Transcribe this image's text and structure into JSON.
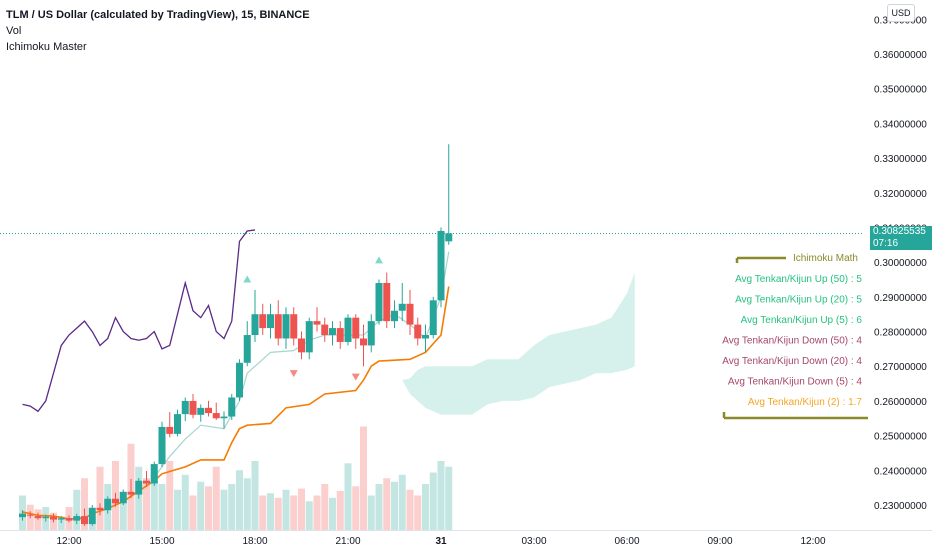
{
  "header": {
    "symbol_line": "TLM / US Dollar (calculated by TradingView), 15, BINANCE",
    "indicator_1": "Vol",
    "indicator_2": "Ichimoku Master"
  },
  "currency_button": "USD",
  "price_badge": {
    "price": "0.30825535",
    "countdown": "07:16"
  },
  "colors": {
    "up": "#26a69a",
    "down": "#ef5350",
    "kijun": "#f57c00",
    "tenkan": "#a5d6cc",
    "chikou": "#5b2a86",
    "cloud": "#c8ece4",
    "table_frame": "#8a8a2a",
    "up_text": "#26c281",
    "down_text": "#a5466c",
    "orange_text": "#f5a623"
  },
  "info_table": {
    "title": "Ichimoku Math",
    "rows": [
      {
        "label": "Avg Tenkan/Kijun Up (50) : 5",
        "tone": "up"
      },
      {
        "label": "Avg Tenkan/Kijun Up (20) : 5",
        "tone": "up"
      },
      {
        "label": "Avg Tenkan/Kijun Up (5) : 6",
        "tone": "up"
      },
      {
        "label": "Avg Tenkan/Kijun Down (50) : 4",
        "tone": "down"
      },
      {
        "label": "Avg Tenkan/Kijun Down (20) : 4",
        "tone": "down"
      },
      {
        "label": "Avg Tenkan/Kijun Down (5) : 4",
        "tone": "down"
      },
      {
        "label": "Avg Tenkan/Kijun (2) : 1.7",
        "tone": "orange"
      }
    ]
  },
  "chart_data": {
    "type": "candlestick",
    "title": "TLM / US Dollar (calculated by TradingView), 15, BINANCE",
    "xlabel": "",
    "ylabel": "",
    "y_axis": {
      "ticks": [
        0.23,
        0.24,
        0.25,
        0.26,
        0.27,
        0.28,
        0.29,
        0.3,
        0.31,
        0.32,
        0.33,
        0.34,
        0.35,
        0.36,
        0.37
      ],
      "tick_labels": [
        "0.23000000",
        "0.24000000",
        "0.25000000",
        "0.26000000",
        "0.27000000",
        "0.28000000",
        "0.29000000",
        "0.30000000",
        "0.31000000",
        "0.32000000",
        "0.33000000",
        "0.34000000",
        "0.35000000",
        "0.36000000",
        "0.37000000"
      ],
      "range": [
        0.2235,
        0.377
      ]
    },
    "x_axis": {
      "ticks": [
        {
          "label": "12:00",
          "hours": 12
        },
        {
          "label": "15:00",
          "hours": 15
        },
        {
          "label": "18:00",
          "hours": 18
        },
        {
          "label": "21:00",
          "hours": 21
        },
        {
          "label": "31",
          "hours": 24
        },
        {
          "label": "03:00",
          "hours": 27
        },
        {
          "label": "06:00",
          "hours": 30
        },
        {
          "label": "09:00",
          "hours": 33
        },
        {
          "label": "12:00",
          "hours": 36
        }
      ],
      "range_hours": [
        10.55,
        37.5
      ],
      "bar_minutes": 15
    },
    "candles": [
      {
        "t": 10.5,
        "o": 0.2265,
        "h": 0.2285,
        "l": 0.2255,
        "c": 0.2275
      },
      {
        "t": 10.75,
        "o": 0.2272,
        "h": 0.2282,
        "l": 0.2262,
        "c": 0.227
      },
      {
        "t": 11.0,
        "o": 0.2268,
        "h": 0.2278,
        "l": 0.2258,
        "c": 0.2262
      },
      {
        "t": 11.25,
        "o": 0.2262,
        "h": 0.2272,
        "l": 0.2252,
        "c": 0.2266
      },
      {
        "t": 11.5,
        "o": 0.2266,
        "h": 0.2276,
        "l": 0.225,
        "c": 0.2258
      },
      {
        "t": 11.75,
        "o": 0.2258,
        "h": 0.2268,
        "l": 0.2248,
        "c": 0.2262
      },
      {
        "t": 12.0,
        "o": 0.2262,
        "h": 0.227,
        "l": 0.225,
        "c": 0.2255
      },
      {
        "t": 12.25,
        "o": 0.2255,
        "h": 0.2275,
        "l": 0.2245,
        "c": 0.2268
      },
      {
        "t": 12.5,
        "o": 0.2268,
        "h": 0.229,
        "l": 0.224,
        "c": 0.2245
      },
      {
        "t": 12.75,
        "o": 0.2245,
        "h": 0.23,
        "l": 0.224,
        "c": 0.2292
      },
      {
        "t": 13.0,
        "o": 0.2292,
        "h": 0.2305,
        "l": 0.227,
        "c": 0.2285
      },
      {
        "t": 13.25,
        "o": 0.2285,
        "h": 0.2325,
        "l": 0.2275,
        "c": 0.2318
      },
      {
        "t": 13.5,
        "o": 0.2318,
        "h": 0.2335,
        "l": 0.2295,
        "c": 0.2305
      },
      {
        "t": 13.75,
        "o": 0.2305,
        "h": 0.2345,
        "l": 0.23,
        "c": 0.2338
      },
      {
        "t": 14.0,
        "o": 0.2338,
        "h": 0.2375,
        "l": 0.232,
        "c": 0.233
      },
      {
        "t": 14.25,
        "o": 0.233,
        "h": 0.2378,
        "l": 0.2318,
        "c": 0.237
      },
      {
        "t": 14.5,
        "o": 0.237,
        "h": 0.2398,
        "l": 0.2352,
        "c": 0.2362
      },
      {
        "t": 14.75,
        "o": 0.2362,
        "h": 0.2425,
        "l": 0.2355,
        "c": 0.2418
      },
      {
        "t": 15.0,
        "o": 0.2418,
        "h": 0.254,
        "l": 0.241,
        "c": 0.2525
      },
      {
        "t": 15.25,
        "o": 0.2525,
        "h": 0.2568,
        "l": 0.2495,
        "c": 0.2505
      },
      {
        "t": 15.5,
        "o": 0.2505,
        "h": 0.2575,
        "l": 0.2498,
        "c": 0.2562
      },
      {
        "t": 15.75,
        "o": 0.2562,
        "h": 0.261,
        "l": 0.2542,
        "c": 0.26
      },
      {
        "t": 16.0,
        "o": 0.26,
        "h": 0.262,
        "l": 0.255,
        "c": 0.256
      },
      {
        "t": 16.25,
        "o": 0.256,
        "h": 0.259,
        "l": 0.254,
        "c": 0.258
      },
      {
        "t": 16.5,
        "o": 0.258,
        "h": 0.26,
        "l": 0.2555,
        "c": 0.2565
      },
      {
        "t": 16.75,
        "o": 0.2565,
        "h": 0.2595,
        "l": 0.2545,
        "c": 0.255
      },
      {
        "t": 17.0,
        "o": 0.255,
        "h": 0.257,
        "l": 0.252,
        "c": 0.2555
      },
      {
        "t": 17.25,
        "o": 0.2555,
        "h": 0.262,
        "l": 0.2545,
        "c": 0.261
      },
      {
        "t": 17.5,
        "o": 0.261,
        "h": 0.272,
        "l": 0.26,
        "c": 0.271
      },
      {
        "t": 17.75,
        "o": 0.271,
        "h": 0.283,
        "l": 0.27,
        "c": 0.279
      },
      {
        "t": 18.0,
        "o": 0.279,
        "h": 0.292,
        "l": 0.277,
        "c": 0.285
      },
      {
        "t": 18.25,
        "o": 0.285,
        "h": 0.288,
        "l": 0.279,
        "c": 0.281
      },
      {
        "t": 18.5,
        "o": 0.281,
        "h": 0.288,
        "l": 0.278,
        "c": 0.285
      },
      {
        "t": 18.75,
        "o": 0.285,
        "h": 0.289,
        "l": 0.276,
        "c": 0.278
      },
      {
        "t": 19.0,
        "o": 0.278,
        "h": 0.287,
        "l": 0.275,
        "c": 0.285
      },
      {
        "t": 19.25,
        "o": 0.285,
        "h": 0.287,
        "l": 0.276,
        "c": 0.278
      },
      {
        "t": 19.5,
        "o": 0.278,
        "h": 0.28,
        "l": 0.272,
        "c": 0.274
      },
      {
        "t": 19.75,
        "o": 0.274,
        "h": 0.284,
        "l": 0.272,
        "c": 0.283
      },
      {
        "t": 20.0,
        "o": 0.283,
        "h": 0.287,
        "l": 0.28,
        "c": 0.282
      },
      {
        "t": 20.25,
        "o": 0.282,
        "h": 0.284,
        "l": 0.277,
        "c": 0.279
      },
      {
        "t": 20.5,
        "o": 0.279,
        "h": 0.283,
        "l": 0.276,
        "c": 0.281
      },
      {
        "t": 20.75,
        "o": 0.281,
        "h": 0.283,
        "l": 0.275,
        "c": 0.277
      },
      {
        "t": 21.0,
        "o": 0.277,
        "h": 0.285,
        "l": 0.276,
        "c": 0.284
      },
      {
        "t": 21.25,
        "o": 0.284,
        "h": 0.285,
        "l": 0.275,
        "c": 0.278
      },
      {
        "t": 21.5,
        "o": 0.278,
        "h": 0.282,
        "l": 0.27,
        "c": 0.276
      },
      {
        "t": 21.75,
        "o": 0.276,
        "h": 0.285,
        "l": 0.274,
        "c": 0.283
      },
      {
        "t": 22.0,
        "o": 0.283,
        "h": 0.295,
        "l": 0.282,
        "c": 0.294
      },
      {
        "t": 22.25,
        "o": 0.294,
        "h": 0.297,
        "l": 0.281,
        "c": 0.283
      },
      {
        "t": 22.5,
        "o": 0.283,
        "h": 0.289,
        "l": 0.281,
        "c": 0.286
      },
      {
        "t": 22.75,
        "o": 0.286,
        "h": 0.294,
        "l": 0.283,
        "c": 0.288
      },
      {
        "t": 23.0,
        "o": 0.288,
        "h": 0.292,
        "l": 0.279,
        "c": 0.282
      },
      {
        "t": 23.25,
        "o": 0.282,
        "h": 0.284,
        "l": 0.276,
        "c": 0.278
      },
      {
        "t": 23.5,
        "o": 0.278,
        "h": 0.282,
        "l": 0.274,
        "c": 0.279
      },
      {
        "t": 23.75,
        "o": 0.279,
        "h": 0.29,
        "l": 0.278,
        "c": 0.289
      },
      {
        "t": 24.0,
        "o": 0.289,
        "h": 0.31,
        "l": 0.287,
        "c": 0.309
      },
      {
        "t": 24.25,
        "o": 0.306,
        "h": 0.334,
        "l": 0.305,
        "c": 0.3083
      }
    ],
    "volume_max_bar_height_ratio": 1.0,
    "volume": [
      0.3,
      0.22,
      0.18,
      0.2,
      0.15,
      0.12,
      0.2,
      0.35,
      0.45,
      0.1,
      0.55,
      0.4,
      0.6,
      0.3,
      0.75,
      0.55,
      0.45,
      0.5,
      0.4,
      0.6,
      0.35,
      0.48,
      0.3,
      0.42,
      0.38,
      0.55,
      0.35,
      0.4,
      0.52,
      0.45,
      0.6,
      0.3,
      0.32,
      0.28,
      0.35,
      0.3,
      0.36,
      0.25,
      0.3,
      0.4,
      0.28,
      0.34,
      0.58,
      0.38,
      0.9,
      0.3,
      0.4,
      0.45,
      0.42,
      0.48,
      0.35,
      0.3,
      0.4,
      0.5,
      0.6,
      0.55
    ],
    "kijun": [
      [
        10.5,
        0.228
      ],
      [
        11.0,
        0.227
      ],
      [
        11.5,
        0.2268
      ],
      [
        12.0,
        0.226
      ],
      [
        12.5,
        0.2262
      ],
      [
        12.75,
        0.2275
      ],
      [
        13.25,
        0.229
      ],
      [
        13.75,
        0.231
      ],
      [
        14.25,
        0.234
      ],
      [
        14.75,
        0.237
      ],
      [
        15.0,
        0.239
      ],
      [
        15.75,
        0.241
      ],
      [
        16.25,
        0.243
      ],
      [
        17.0,
        0.243
      ],
      [
        17.25,
        0.248
      ],
      [
        17.5,
        0.252
      ],
      [
        17.75,
        0.253
      ],
      [
        18.5,
        0.2535
      ],
      [
        19.0,
        0.258
      ],
      [
        19.75,
        0.259
      ],
      [
        20.25,
        0.262
      ],
      [
        21.25,
        0.263
      ],
      [
        21.5,
        0.266
      ],
      [
        21.75,
        0.27
      ],
      [
        22.0,
        0.2715
      ],
      [
        23.0,
        0.272
      ],
      [
        23.5,
        0.274
      ],
      [
        24.0,
        0.279
      ],
      [
        24.25,
        0.293
      ]
    ],
    "tenkan": [
      [
        14.75,
        0.238
      ],
      [
        15.25,
        0.244
      ],
      [
        15.75,
        0.249
      ],
      [
        16.25,
        0.253
      ],
      [
        17.0,
        0.252
      ],
      [
        17.5,
        0.26
      ],
      [
        17.75,
        0.268
      ],
      [
        18.5,
        0.274
      ],
      [
        19.25,
        0.2745
      ],
      [
        19.75,
        0.2775
      ],
      [
        20.25,
        0.279
      ],
      [
        21.0,
        0.279
      ],
      [
        21.5,
        0.279
      ],
      [
        22.0,
        0.283
      ],
      [
        22.5,
        0.285
      ],
      [
        23.0,
        0.282
      ],
      [
        23.5,
        0.278
      ],
      [
        24.0,
        0.29
      ],
      [
        24.25,
        0.303
      ]
    ],
    "chikou": [
      [
        10.5,
        0.259
      ],
      [
        10.75,
        0.2585
      ],
      [
        11.0,
        0.257
      ],
      [
        11.25,
        0.26
      ],
      [
        11.5,
        0.268
      ],
      [
        11.75,
        0.276
      ],
      [
        12.0,
        0.279
      ],
      [
        12.25,
        0.281
      ],
      [
        12.5,
        0.283
      ],
      [
        12.75,
        0.28
      ],
      [
        13.0,
        0.276
      ],
      [
        13.25,
        0.278
      ],
      [
        13.5,
        0.284
      ],
      [
        13.75,
        0.28
      ],
      [
        14.0,
        0.278
      ],
      [
        14.25,
        0.2775
      ],
      [
        14.5,
        0.278
      ],
      [
        14.75,
        0.28
      ],
      [
        15.0,
        0.275
      ],
      [
        15.25,
        0.276
      ],
      [
        15.5,
        0.285
      ],
      [
        15.75,
        0.294
      ],
      [
        16.0,
        0.286
      ],
      [
        16.25,
        0.284
      ],
      [
        16.5,
        0.2875
      ],
      [
        16.75,
        0.28
      ],
      [
        17.0,
        0.278
      ],
      [
        17.25,
        0.283
      ],
      [
        17.5,
        0.306
      ],
      [
        17.75,
        0.309
      ],
      [
        18.0,
        0.3093
      ]
    ],
    "cloud": [
      [
        22.75,
        0.266,
        0.266
      ],
      [
        23.0,
        0.2665,
        0.262
      ],
      [
        23.25,
        0.269,
        0.26
      ],
      [
        23.5,
        0.27,
        0.258
      ],
      [
        24.0,
        0.27,
        0.256
      ],
      [
        24.5,
        0.27,
        0.256
      ],
      [
        25.0,
        0.27,
        0.256
      ],
      [
        25.5,
        0.272,
        0.259
      ],
      [
        26.0,
        0.272,
        0.26
      ],
      [
        26.5,
        0.272,
        0.26
      ],
      [
        27.0,
        0.276,
        0.261
      ],
      [
        27.5,
        0.279,
        0.264
      ],
      [
        28.0,
        0.28,
        0.265
      ],
      [
        28.5,
        0.281,
        0.266
      ],
      [
        29.0,
        0.282,
        0.268
      ],
      [
        29.5,
        0.284,
        0.268
      ],
      [
        30.0,
        0.291,
        0.269
      ],
      [
        30.25,
        0.297,
        0.27
      ]
    ],
    "markers": [
      {
        "t": 17.75,
        "price": 0.295,
        "dir": "up"
      },
      {
        "t": 22.0,
        "price": 0.3005,
        "dir": "up"
      },
      {
        "t": 19.25,
        "price": 0.268,
        "dir": "down"
      },
      {
        "t": 21.25,
        "price": 0.267,
        "dir": "down"
      }
    ],
    "last_price": 0.30825535,
    "grid": false,
    "legend": "top-left"
  }
}
